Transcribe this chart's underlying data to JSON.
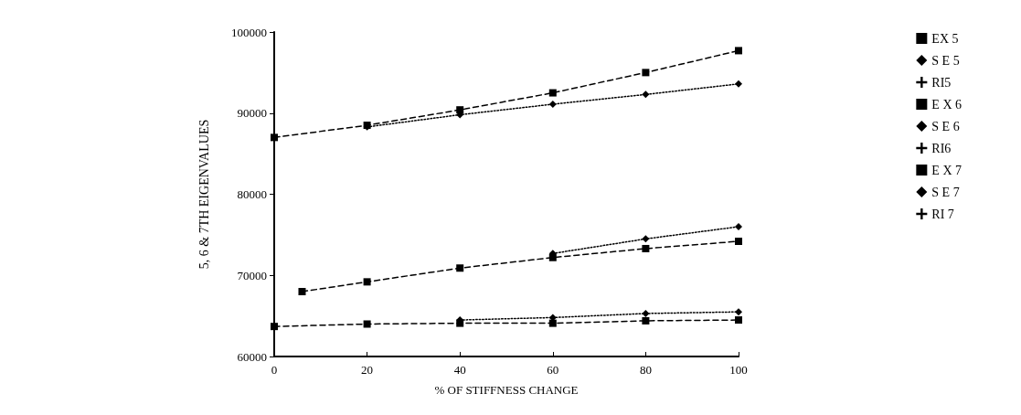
{
  "chart_data": {
    "type": "line",
    "xlabel": "% OF STIFFNESS CHANGE",
    "ylabel": "5, 6 & 7TH EIGENVALUES",
    "x": [
      0,
      20,
      40,
      60,
      80,
      100
    ],
    "xlim": [
      0,
      100
    ],
    "xticks": [
      0,
      20,
      40,
      60,
      80,
      100
    ],
    "ylim": [
      60000,
      100000
    ],
    "yticks": [
      60000,
      70000,
      80000,
      90000,
      100000
    ],
    "grid": false,
    "legend": "right",
    "series": [
      {
        "name": "EX 5",
        "color": "#000000",
        "marker": "square",
        "line_style": "dashed",
        "values": [
          87000,
          88500,
          90400,
          92500,
          95000,
          97700
        ]
      },
      {
        "name": "S E 5",
        "color": "#000000",
        "marker": "diamond",
        "line_style": "dotted",
        "values": [
          null,
          88300,
          89800,
          91100,
          92300,
          93600
        ]
      },
      {
        "name": "RI5",
        "color": "#000000",
        "marker": "cross",
        "line_style": "dashed",
        "values": [
          null,
          null,
          null,
          null,
          null,
          null
        ]
      },
      {
        "name": "E X 6",
        "color": "#000000",
        "marker": "square",
        "line_style": "dashed",
        "x": [
          6,
          20,
          40,
          60,
          80,
          100
        ],
        "values": [
          68000,
          69200,
          70900,
          72200,
          73300,
          74200
        ]
      },
      {
        "name": "S E 6",
        "color": "#000000",
        "marker": "diamond",
        "line_style": "dotted",
        "values": [
          null,
          null,
          null,
          72700,
          74500,
          76000
        ]
      },
      {
        "name": "RI6",
        "color": "#000000",
        "marker": "cross",
        "line_style": "dashed",
        "values": [
          null,
          null,
          null,
          null,
          null,
          null
        ]
      },
      {
        "name": "E X 7",
        "color": "#000000",
        "marker": "square",
        "line_style": "dashed",
        "values": [
          63700,
          64000,
          64100,
          64100,
          64400,
          64500
        ]
      },
      {
        "name": "S E 7",
        "color": "#000000",
        "marker": "diamond",
        "line_style": "dotted",
        "values": [
          null,
          null,
          64500,
          64800,
          65300,
          65500
        ]
      },
      {
        "name": "RI 7",
        "color": "#000000",
        "marker": "cross",
        "line_style": "dashed",
        "values": [
          null,
          null,
          null,
          null,
          null,
          null
        ]
      }
    ]
  }
}
